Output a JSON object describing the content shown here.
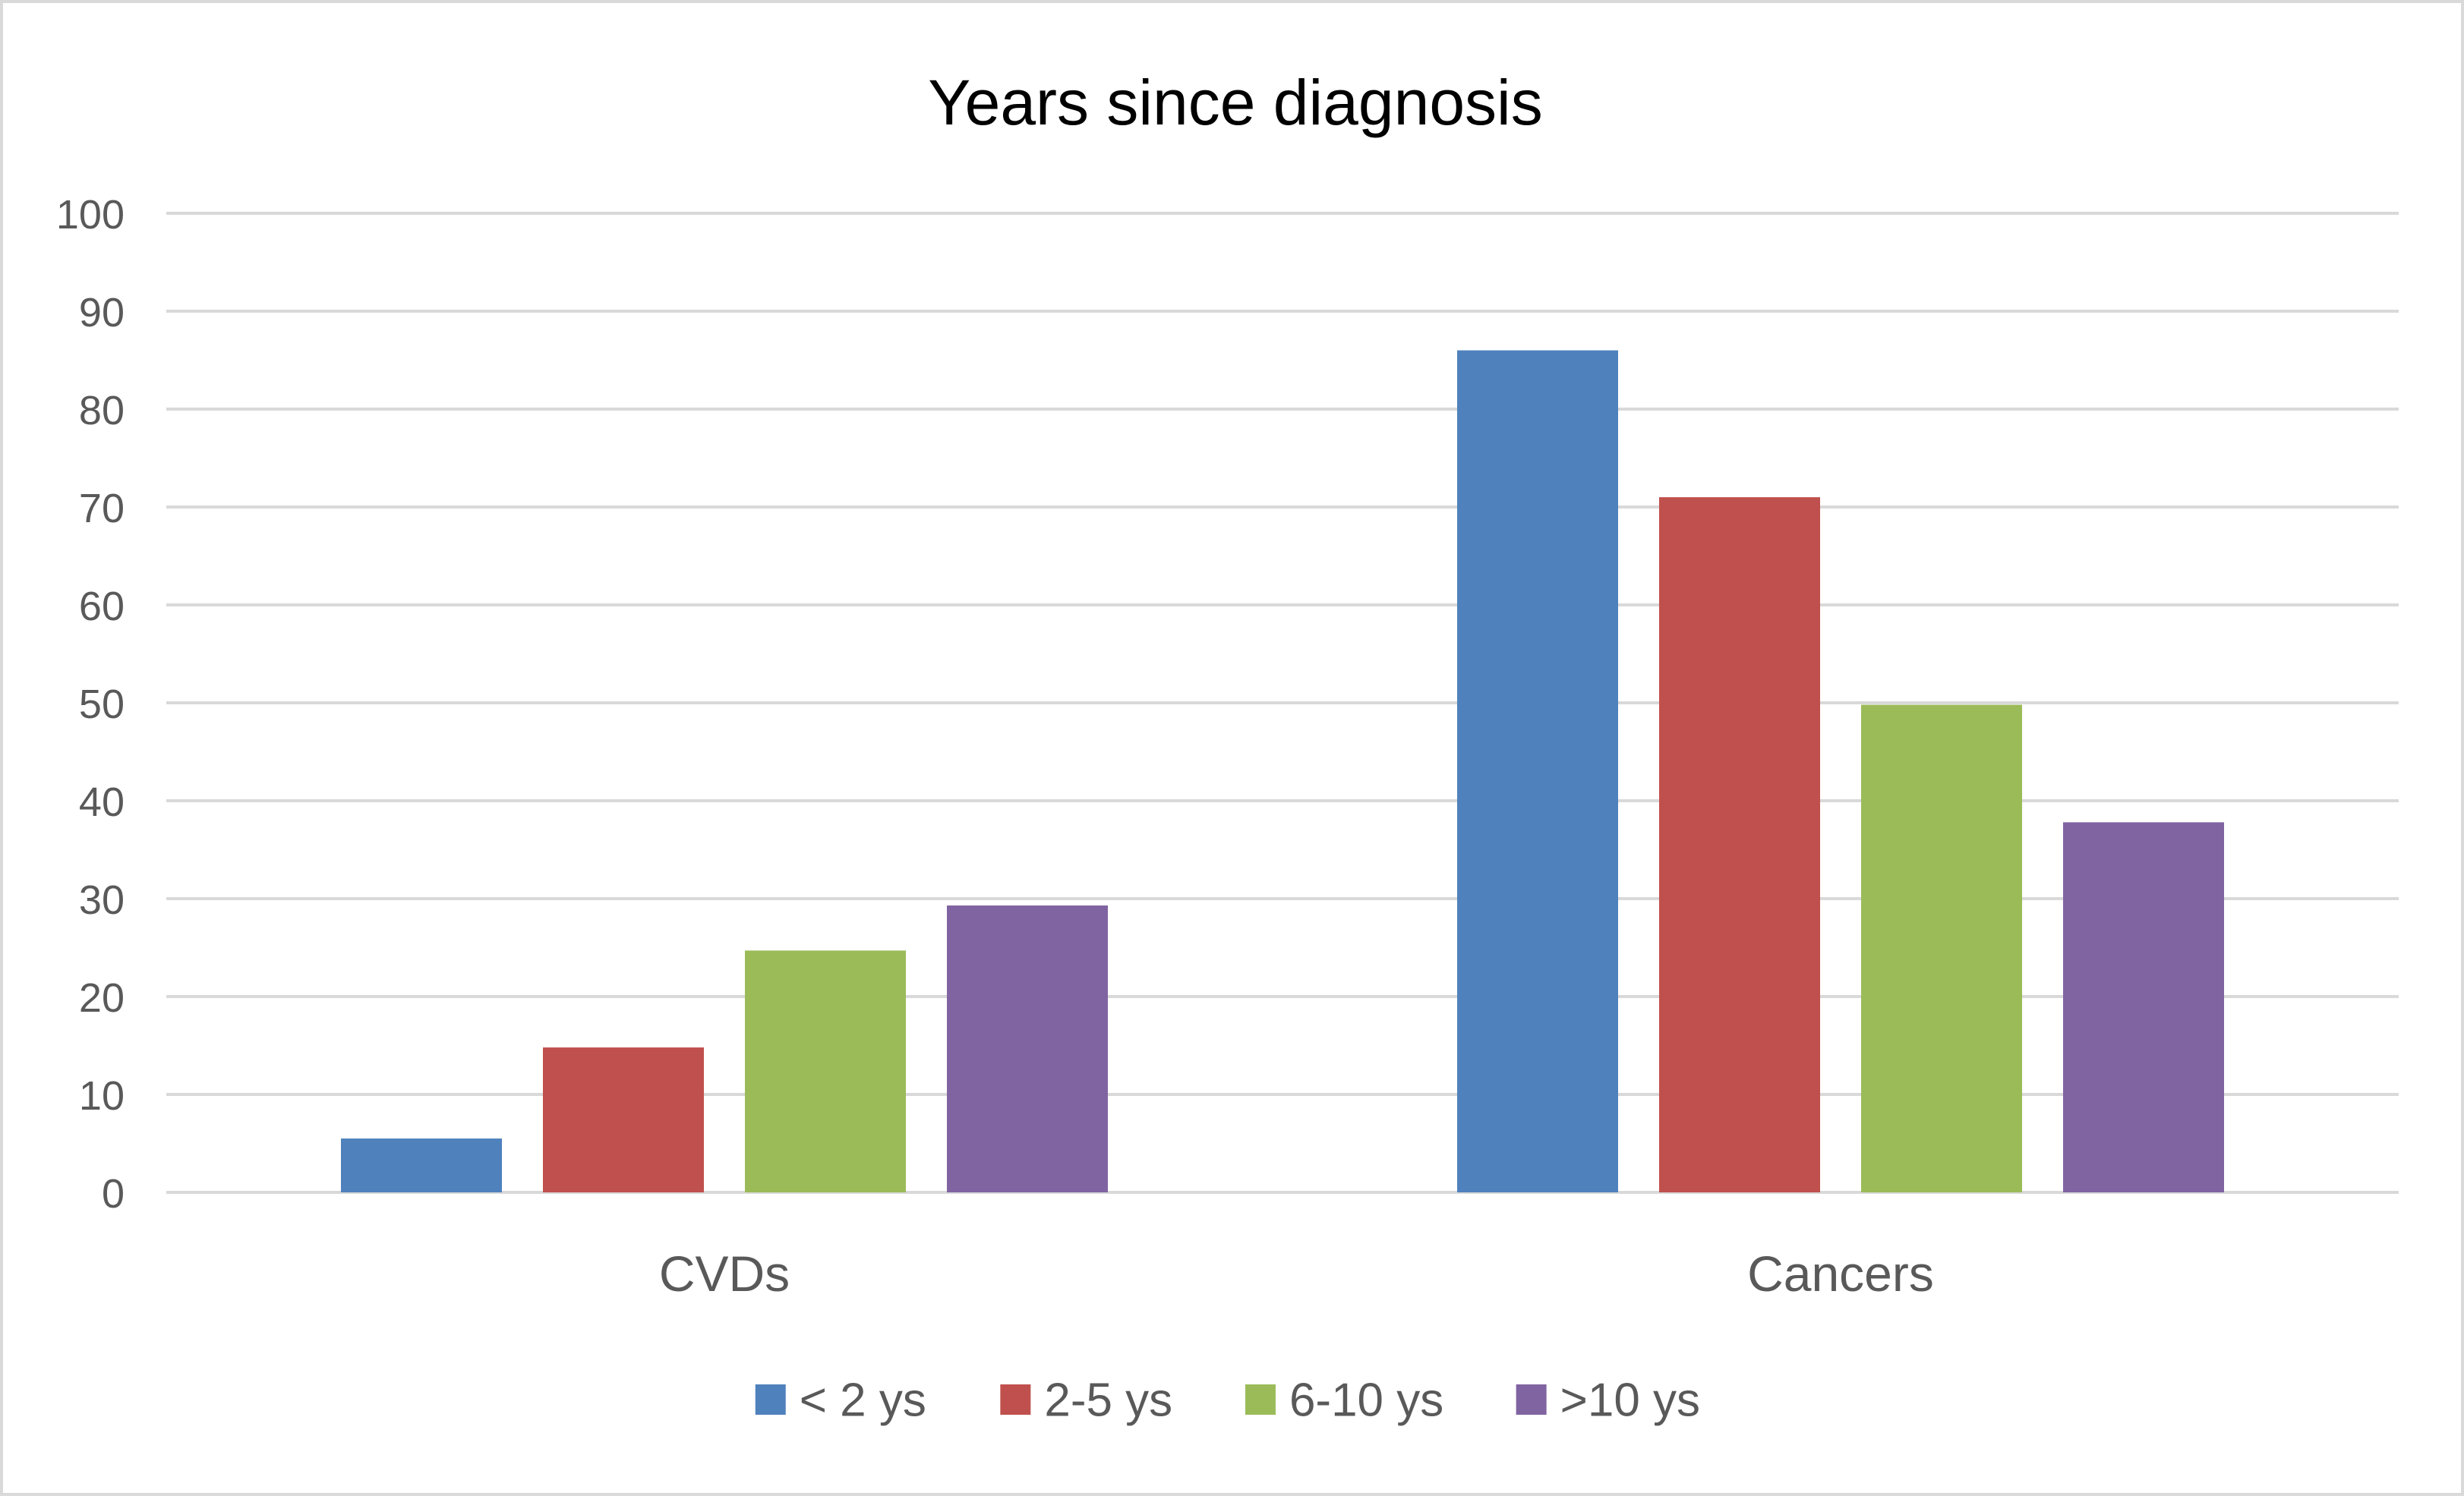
{
  "chart_data": {
    "type": "bar",
    "title": "Years since diagnosis",
    "categories": [
      "CVDs",
      "Cancers"
    ],
    "series": [
      {
        "name": "< 2 ys",
        "color": "#4f81bd",
        "values": [
          5.5,
          86
        ]
      },
      {
        "name": "2-5 ys",
        "color": "#c0504d",
        "values": [
          14.8,
          71
        ]
      },
      {
        "name": "6-10 ys",
        "color": "#9bbb59",
        "values": [
          24.7,
          49.8
        ]
      },
      {
        "name": ">10 ys",
        "color": "#8064a2",
        "values": [
          29.3,
          37.8
        ]
      }
    ],
    "ylim": [
      0,
      100
    ],
    "yticks": [
      0,
      10,
      20,
      30,
      40,
      50,
      60,
      70,
      80,
      90,
      100
    ],
    "xlabel": "",
    "ylabel": "",
    "grid": true,
    "legend_position": "bottom"
  },
  "colors": {
    "gridline": "#d9d9d9",
    "axis_text": "#595959",
    "title_text": "#000000",
    "frame": "#d9d9d9"
  }
}
